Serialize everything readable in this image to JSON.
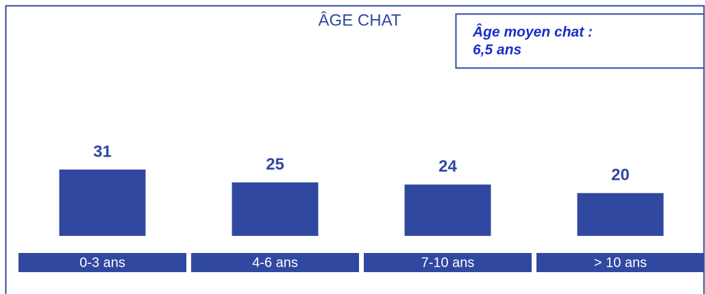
{
  "chart_data": {
    "type": "bar",
    "title": "ÂGE CHAT",
    "annotation": [
      "Âge moyen chat :",
      "6,5 ans"
    ],
    "categories": [
      "0-3 ans",
      "4-6 ans",
      "7-10 ans",
      "> 10 ans"
    ],
    "values": [
      31,
      25,
      24,
      20
    ],
    "color": "#3048a0"
  }
}
